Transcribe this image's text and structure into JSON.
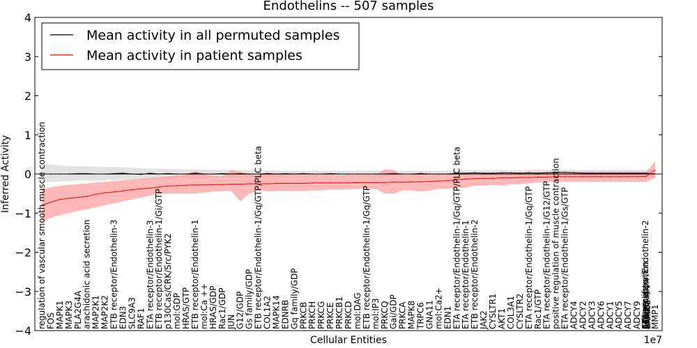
{
  "chart_data": {
    "type": "line",
    "title": "Endothelins -- 507 samples",
    "xlabel": "Cellular Entities",
    "ylabel": "Inferred Activity",
    "x_scale_label": "1e7",
    "ylim": [
      -4,
      4
    ],
    "yticks": [
      -4,
      -3,
      -2,
      -1,
      0,
      1,
      2,
      3,
      4
    ],
    "grid": false,
    "legend_position": "top-left",
    "colors": {
      "permuted": "#000000",
      "patient": "#ff0000",
      "patient_band": "#ff9a9a",
      "permuted_band": "#d8d8d8"
    },
    "categories": [
      "regulation of vascular smooth muscle contraction",
      "FOS",
      "MAPK1",
      "MAPK3",
      "PLA2G4A",
      "arachidonic acid secretion",
      "MAP2K1",
      "MAP2K2",
      "ETB receptor/Endothelin-3",
      "EDN3",
      "SLC9A3",
      "RAF1",
      "ETA receptor/Endothelin-3",
      "ETB receptor/Endothelin-1/Gi/GTP",
      "p130Cas/CRK/Src/PYK2",
      "mol:GDP",
      "HRAS/GTP",
      "ETB receptor/Endothelin-1",
      "mol:Ca ++",
      "HRAS/GDP",
      "Rac1/GDP",
      "JUN",
      "G12/GDP",
      "Gs family/GDP",
      "ETB receptor/Endothelin-1/Gq/GTP/PLC beta",
      "COL1A2",
      "MAPK14",
      "EDNRB",
      "Gq family/GDP",
      "PRKCB",
      "PRKCH",
      "PRKCG",
      "PRKCE",
      "PRKCB1",
      "PRKCD",
      "mol:DAG",
      "ETB receptor/Endothelin-1/Gq/GTP",
      "mol:IP3",
      "PRKCQ",
      "Gai/GDP",
      "PRKCA",
      "MAPK8",
      "TRPC6",
      "GNA11",
      "mol:Ca2+",
      "EDN1",
      "ETA receptor/Endothelin-1/Gq/GTP/PLC beta",
      "ETA receptor/Endothelin-1",
      "ETB receptor/Endothelin-2",
      "JAK2",
      "CYSLTR1",
      "AKT1",
      "COL3A1",
      "CYSLTR2",
      "ETA receptor/Endothelin-1/Gq/GTP",
      "Rac1/GTP",
      "ETA receptor/Endothelin-1/G12/GTP",
      "positive regulation of muscle contraction",
      "ETA receptor/Endothelin-1/Gs/GTP",
      "ADCY4",
      "ADCY2",
      "ADCY3",
      "ADCY6",
      "ADCY1",
      "ADCY5",
      "ADCY7",
      "ADCY9",
      "ADCY8",
      "MMP1"
    ],
    "tail_overlap_labels": [
      "ETA receptor/Endothelin-2",
      "EDN2",
      "mol:Ca ++",
      "cell proliferation",
      "vasodilation",
      "cAMP"
    ],
    "series": [
      {
        "name": "Mean activity in all permuted samples",
        "values": [
          0.0,
          0.0,
          0.0,
          0.0,
          0.01,
          0.01,
          0.0,
          0.0,
          0.01,
          0.02,
          0.0,
          -0.01,
          0.02,
          0.0,
          0.01,
          0.0,
          0.0,
          0.02,
          0.0,
          0.0,
          0.01,
          0.0,
          0.01,
          0.0,
          0.0,
          0.01,
          0.0,
          0.01,
          0.0,
          0.01,
          0.0,
          0.0,
          0.01,
          0.0,
          0.0,
          0.0,
          0.0,
          0.0,
          0.0,
          0.01,
          0.0,
          0.0,
          0.01,
          0.0,
          0.0,
          0.0,
          0.02,
          0.02,
          0.03,
          0.02,
          0.02,
          0.03,
          0.03,
          0.02,
          0.03,
          0.02,
          0.03,
          0.04,
          0.04,
          0.03,
          0.02,
          0.02,
          0.02,
          0.02,
          0.02,
          0.02,
          0.02,
          0.02,
          0.0
        ],
        "band_low": [
          -0.2,
          -0.2,
          -0.2,
          -0.18,
          -0.17,
          -0.17,
          -0.17,
          -0.16,
          -0.15,
          -0.15,
          -0.14,
          -0.14,
          -0.13,
          -0.12,
          -0.12,
          -0.12,
          -0.1,
          -0.1,
          -0.1,
          -0.09,
          -0.09,
          -0.09,
          -0.08,
          -0.09,
          -0.08,
          -0.07,
          -0.07,
          -0.06,
          -0.06,
          -0.06,
          -0.06,
          -0.06,
          -0.06,
          -0.06,
          -0.06,
          -0.06,
          -0.06,
          -0.06,
          -0.06,
          -0.06,
          -0.06,
          -0.06,
          -0.05,
          -0.05,
          -0.05,
          -0.05,
          -0.05,
          -0.05,
          -0.05,
          -0.05,
          -0.05,
          -0.05,
          -0.05,
          -0.05,
          -0.05,
          -0.05,
          -0.05,
          -0.05,
          -0.05,
          -0.05,
          -0.05,
          -0.05,
          -0.05,
          -0.05,
          -0.05,
          -0.05,
          -0.05,
          -0.05,
          -0.08
        ],
        "band_high": [
          0.25,
          0.24,
          0.22,
          0.2,
          0.2,
          0.2,
          0.19,
          0.18,
          0.18,
          0.17,
          0.16,
          0.15,
          0.14,
          0.14,
          0.13,
          0.12,
          0.12,
          0.12,
          0.11,
          0.11,
          0.1,
          0.1,
          0.1,
          0.1,
          0.1,
          0.09,
          0.09,
          0.08,
          0.08,
          0.08,
          0.08,
          0.08,
          0.08,
          0.08,
          0.08,
          0.08,
          0.08,
          0.08,
          0.08,
          0.08,
          0.08,
          0.08,
          0.08,
          0.08,
          0.08,
          0.08,
          0.1,
          0.1,
          0.1,
          0.1,
          0.1,
          0.1,
          0.1,
          0.1,
          0.11,
          0.11,
          0.11,
          0.11,
          0.11,
          0.1,
          0.1,
          0.1,
          0.1,
          0.1,
          0.1,
          0.1,
          0.1,
          0.1,
          0.1
        ]
      },
      {
        "name": "Mean activity in patient samples",
        "values": [
          -0.8,
          -0.72,
          -0.65,
          -0.62,
          -0.6,
          -0.57,
          -0.52,
          -0.48,
          -0.46,
          -0.43,
          -0.4,
          -0.38,
          -0.36,
          -0.33,
          -0.31,
          -0.3,
          -0.29,
          -0.28,
          -0.28,
          -0.27,
          -0.27,
          -0.26,
          -0.26,
          -0.25,
          -0.25,
          -0.25,
          -0.24,
          -0.24,
          -0.24,
          -0.24,
          -0.23,
          -0.23,
          -0.23,
          -0.23,
          -0.23,
          -0.22,
          -0.22,
          -0.22,
          -0.22,
          -0.21,
          -0.21,
          -0.2,
          -0.2,
          -0.19,
          -0.18,
          -0.17,
          -0.15,
          -0.13,
          -0.12,
          -0.11,
          -0.11,
          -0.1,
          -0.1,
          -0.09,
          -0.09,
          -0.08,
          -0.08,
          -0.07,
          -0.07,
          -0.07,
          -0.07,
          -0.07,
          -0.07,
          -0.07,
          -0.07,
          -0.07,
          -0.07,
          -0.06,
          0.1
        ],
        "band_low": [
          -1.22,
          -1.12,
          -1.05,
          -1.0,
          -0.95,
          -0.9,
          -0.85,
          -0.8,
          -0.75,
          -0.7,
          -0.65,
          -0.6,
          -0.55,
          -0.52,
          -0.5,
          -0.5,
          -0.5,
          -0.5,
          -0.48,
          -0.45,
          -0.44,
          -0.43,
          -0.7,
          -0.5,
          -0.42,
          -0.44,
          -0.43,
          -0.43,
          -0.44,
          -0.43,
          -0.42,
          -0.42,
          -0.4,
          -0.4,
          -0.4,
          -0.38,
          -0.38,
          -0.38,
          -0.5,
          -0.5,
          -0.42,
          -0.42,
          -0.45,
          -0.42,
          -0.38,
          -0.38,
          -0.36,
          -0.35,
          -0.3,
          -0.3,
          -0.28,
          -0.3,
          -0.26,
          -0.26,
          -0.24,
          -0.22,
          -0.2,
          -0.2,
          -0.2,
          -0.2,
          -0.2,
          -0.2,
          -0.2,
          -0.2,
          -0.2,
          -0.2,
          -0.2,
          -0.2,
          -0.1
        ],
        "band_high": [
          -0.38,
          -0.34,
          -0.3,
          -0.28,
          -0.26,
          -0.24,
          -0.22,
          -0.2,
          -0.18,
          -0.16,
          -0.14,
          -0.12,
          -0.1,
          -0.08,
          -0.06,
          -0.04,
          -0.02,
          0.08,
          0.0,
          -0.05,
          -0.06,
          0.1,
          0.05,
          0.0,
          -0.04,
          0.05,
          0.0,
          -0.02,
          -0.02,
          -0.03,
          -0.02,
          -0.02,
          -0.02,
          -0.04,
          -0.02,
          -0.02,
          -0.02,
          -0.02,
          0.12,
          0.1,
          -0.02,
          -0.02,
          0.05,
          -0.04,
          0.0,
          0.0,
          0.02,
          0.02,
          0.03,
          0.03,
          0.03,
          0.04,
          0.04,
          0.04,
          0.05,
          0.05,
          0.05,
          0.06,
          0.06,
          0.06,
          0.06,
          0.06,
          0.06,
          0.06,
          0.06,
          0.06,
          0.06,
          0.06,
          0.32
        ]
      }
    ]
  }
}
